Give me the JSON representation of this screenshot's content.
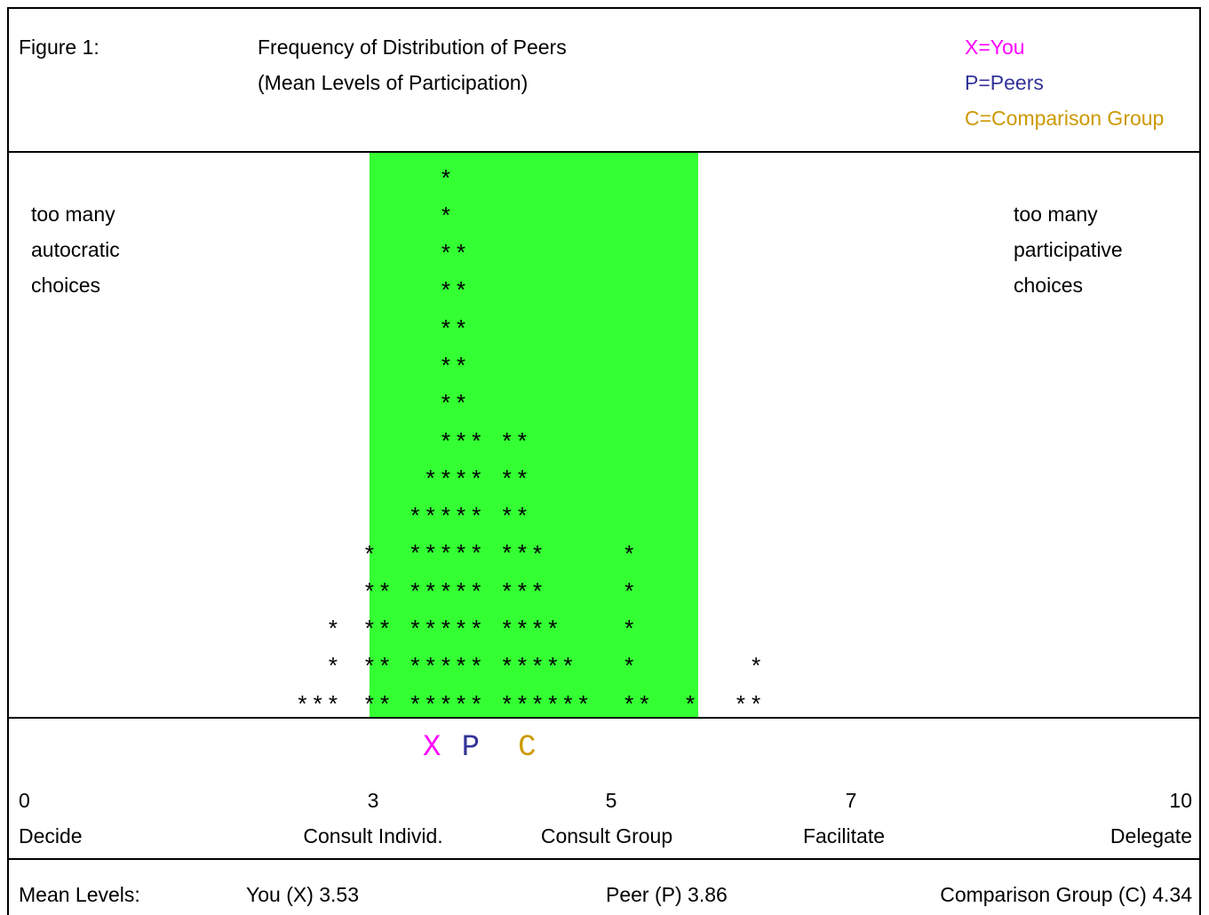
{
  "header": {
    "figure_label": "Figure 1:",
    "title_line1": "Frequency of Distribution of Peers",
    "title_line2": "(Mean Levels of Participation)"
  },
  "legend": [
    {
      "label": "X=You",
      "color": "#ff00ff"
    },
    {
      "label": "P=Peers",
      "color": "#333399"
    },
    {
      "label": "C=Comparison Group",
      "color": "#cc9900"
    }
  ],
  "annotations": {
    "left": [
      "too many",
      "autocratic",
      "choices"
    ],
    "right": [
      "too many",
      "participative",
      "choices"
    ]
  },
  "band_color": "#33ff33",
  "markers": [
    {
      "symbol": "X",
      "value": 3.53,
      "color": "#ff00ff"
    },
    {
      "symbol": "P",
      "value": 3.86,
      "color": "#333399"
    },
    {
      "symbol": "C",
      "value": 4.34,
      "color": "#cc9900"
    }
  ],
  "chart_data": {
    "type": "bar",
    "title": "Frequency of Distribution of Peers",
    "subtitle": "(Mean Levels of Participation)",
    "band_range": [
      3.0,
      5.8
    ],
    "columns": [
      {
        "x": 2.43,
        "count": 1
      },
      {
        "x": 2.56,
        "count": 1
      },
      {
        "x": 2.69,
        "count": 3
      },
      {
        "x": 3.0,
        "count": 5
      },
      {
        "x": 3.13,
        "count": 4
      },
      {
        "x": 3.39,
        "count": 6
      },
      {
        "x": 3.52,
        "count": 7
      },
      {
        "x": 3.65,
        "count": 15
      },
      {
        "x": 3.78,
        "count": 13
      },
      {
        "x": 3.91,
        "count": 8
      },
      {
        "x": 4.17,
        "count": 8
      },
      {
        "x": 4.3,
        "count": 8
      },
      {
        "x": 4.43,
        "count": 5
      },
      {
        "x": 4.56,
        "count": 3
      },
      {
        "x": 4.69,
        "count": 2
      },
      {
        "x": 4.82,
        "count": 1
      },
      {
        "x": 5.21,
        "count": 5
      },
      {
        "x": 5.34,
        "count": 1
      },
      {
        "x": 5.73,
        "count": 1
      },
      {
        "x": 6.16,
        "count": 1
      },
      {
        "x": 6.29,
        "count": 2
      }
    ],
    "xticks": [
      {
        "value": 0,
        "label": "0",
        "name": "Decide"
      },
      {
        "value": 3,
        "label": "3",
        "name": "Consult Individ."
      },
      {
        "value": 5,
        "label": "5",
        "name": "Consult Group"
      },
      {
        "value": 7,
        "label": "7",
        "name": "Facilitate"
      },
      {
        "value": 10,
        "label": "10",
        "name": "Delegate"
      }
    ],
    "xlim": [
      0,
      10
    ]
  },
  "footer": {
    "label": "Mean Levels:",
    "you": "You (X) 3.53",
    "peer": "Peer (P) 3.86",
    "comparison": "Comparison Group (C) 4.34"
  }
}
